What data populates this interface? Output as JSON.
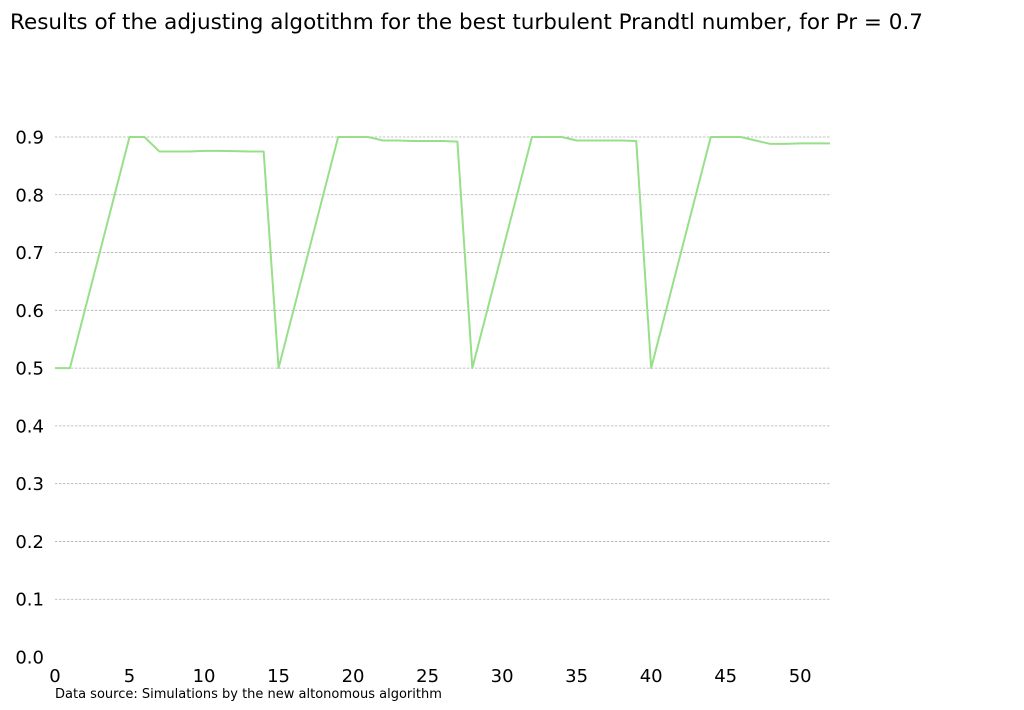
{
  "chart_data": {
    "type": "line",
    "title": "Results of the adjusting algotithm for the best turbulent Prandtl number, for Pr = 0.7",
    "xlabel": "",
    "ylabel": "",
    "xlim": [
      0,
      52
    ],
    "ylim": [
      0,
      0.9
    ],
    "x_ticks": [
      0,
      5,
      10,
      15,
      20,
      25,
      30,
      35,
      40,
      45,
      50
    ],
    "y_ticks": [
      "0.0",
      "0.1",
      "0.2",
      "0.3",
      "0.4",
      "0.5",
      "0.6",
      "0.7",
      "0.8",
      "0.9"
    ],
    "grid": "horizontal",
    "legend": "none",
    "annotation": "Data source: Simulations by the new altonomous algorithm",
    "series": [
      {
        "color": "#98df8a",
        "x": [
          0,
          1,
          5,
          6,
          7,
          8,
          9,
          10,
          11,
          12,
          13,
          14,
          15,
          19,
          20,
          21,
          22,
          23,
          24,
          25,
          26,
          27,
          28,
          32,
          33,
          34,
          35,
          36,
          37,
          38,
          39,
          40,
          44,
          45,
          46,
          47,
          48,
          49,
          50,
          51,
          52
        ],
        "y": [
          0.5,
          0.5,
          0.9,
          0.9,
          0.875,
          0.875,
          0.875,
          0.876,
          0.876,
          0.8755,
          0.875,
          0.875,
          0.5,
          0.9,
          0.9,
          0.9,
          0.894,
          0.894,
          0.893,
          0.893,
          0.893,
          0.892,
          0.5,
          0.9,
          0.9,
          0.9,
          0.894,
          0.894,
          0.894,
          0.894,
          0.893,
          0.5,
          0.9,
          0.9,
          0.9,
          0.894,
          0.888,
          0.888,
          0.889,
          0.889,
          0.889
        ]
      }
    ]
  }
}
